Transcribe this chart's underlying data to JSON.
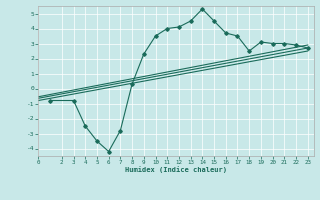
{
  "xlabel": "Humidex (Indice chaleur)",
  "ylabel": "",
  "bg_color": "#c8e8e8",
  "line_color": "#1a6b5a",
  "grid_color": "#ffffff",
  "xlim": [
    0,
    23.5
  ],
  "ylim": [
    -4.5,
    5.5
  ],
  "xticks": [
    0,
    2,
    3,
    4,
    5,
    6,
    7,
    8,
    9,
    10,
    11,
    12,
    13,
    14,
    15,
    16,
    17,
    18,
    19,
    20,
    21,
    22,
    23
  ],
  "yticks": [
    -4,
    -3,
    -2,
    -1,
    0,
    1,
    2,
    3,
    4,
    5
  ],
  "curve1_x": [
    1,
    3,
    4,
    5,
    6,
    7,
    8,
    9,
    10,
    11,
    12,
    13,
    14,
    15,
    16,
    17,
    18,
    19,
    20,
    21,
    22,
    23
  ],
  "curve1_y": [
    -0.8,
    -0.8,
    -2.5,
    -3.5,
    -4.2,
    -2.8,
    0.3,
    2.3,
    3.5,
    4.0,
    4.1,
    4.5,
    5.3,
    4.5,
    3.7,
    3.5,
    2.5,
    3.1,
    3.0,
    3.0,
    2.9,
    2.7
  ],
  "curve2_x": [
    0,
    23
  ],
  "curve2_y": [
    -0.8,
    2.5
  ],
  "curve3_x": [
    0,
    23
  ],
  "curve3_y": [
    -0.65,
    2.7
  ],
  "curve4_x": [
    0,
    23
  ],
  "curve4_y": [
    -0.55,
    2.9
  ]
}
